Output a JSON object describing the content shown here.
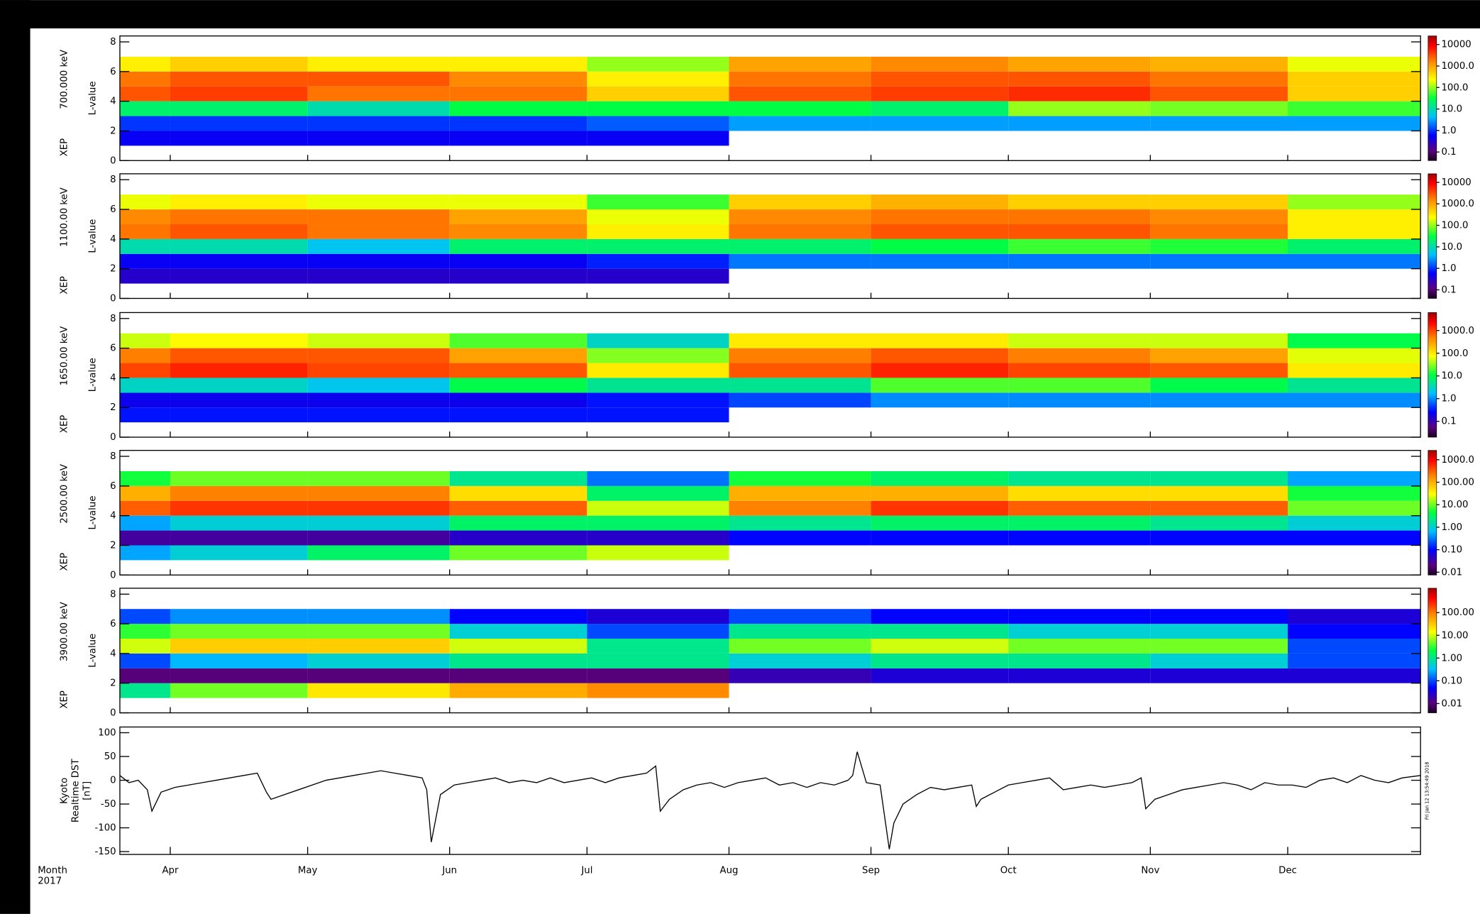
{
  "chart_data": [
    {
      "type": "heatmap",
      "title": "700.000 keV",
      "instrument": "XEP",
      "ylabel": "L-value",
      "colormap": "rainbow",
      "xlim": [
        80,
        364
      ],
      "ylim": [
        0,
        8.4
      ],
      "yticks": [
        0,
        2,
        4,
        6,
        8
      ],
      "xbins": [
        80,
        91,
        121,
        152,
        182,
        213,
        244,
        274,
        305,
        335,
        364
      ],
      "ybins": [
        1,
        2,
        3,
        4,
        5,
        6,
        7
      ],
      "z": [
        [
          0.5,
          0.5,
          0.5,
          0.5,
          0.5,
          null,
          null,
          null,
          null,
          null
        ],
        [
          1,
          1,
          1,
          1,
          1.5,
          3,
          3,
          3,
          3,
          3
        ],
        [
          20,
          20,
          10,
          30,
          30,
          30,
          20,
          100,
          80,
          50
        ],
        [
          3000,
          4000,
          2000,
          2000,
          500,
          3000,
          4000,
          5000,
          3000,
          500
        ],
        [
          2000,
          3000,
          3000,
          1500,
          300,
          2000,
          3000,
          3000,
          2000,
          500
        ],
        [
          300,
          500,
          300,
          300,
          100,
          1000,
          1500,
          1000,
          800,
          200
        ]
      ],
      "clim": [
        0.04,
        25000
      ],
      "cticks": [
        0.1,
        {
          "value": 1,
          "label": "1.0"
        },
        {
          "value": 10,
          "label": "10.0"
        },
        {
          "value": 100,
          "label": "100.0"
        },
        {
          "value": 1000,
          "label": "1000.0"
        },
        10000
      ]
    },
    {
      "type": "heatmap",
      "title": "1100.00 keV",
      "instrument": "XEP",
      "ylabel": "L-value",
      "colormap": "rainbow",
      "xlim": [
        80,
        364
      ],
      "ylim": [
        0,
        8.4
      ],
      "yticks": [
        0,
        2,
        4,
        6,
        8
      ],
      "xbins": [
        80,
        91,
        121,
        152,
        182,
        213,
        244,
        274,
        305,
        335,
        364
      ],
      "ybins": [
        1,
        2,
        3,
        4,
        5,
        6,
        7
      ],
      "z": [
        [
          0.3,
          0.3,
          0.3,
          0.3,
          0.3,
          null,
          null,
          null,
          null,
          null
        ],
        [
          0.5,
          0.5,
          0.5,
          0.5,
          0.8,
          2,
          2,
          2,
          2,
          2
        ],
        [
          10,
          10,
          5,
          20,
          20,
          20,
          30,
          50,
          40,
          20
        ],
        [
          2000,
          3000,
          2000,
          1500,
          300,
          2000,
          3000,
          3000,
          2000,
          300
        ],
        [
          1500,
          2000,
          2000,
          1000,
          200,
          1500,
          2000,
          2000,
          1500,
          300
        ],
        [
          200,
          300,
          200,
          200,
          50,
          500,
          800,
          500,
          500,
          100
        ]
      ],
      "clim": [
        0.04,
        25000
      ],
      "cticks": [
        0.1,
        {
          "value": 1,
          "label": "1.0"
        },
        {
          "value": 10,
          "label": "10.0"
        },
        {
          "value": 100,
          "label": "100.0"
        },
        {
          "value": 1000,
          "label": "1000.0"
        },
        10000
      ]
    },
    {
      "type": "heatmap",
      "title": "1650.00 keV",
      "instrument": "XEP",
      "ylabel": "L-value",
      "colormap": "rainbow",
      "xlim": [
        80,
        364
      ],
      "ylim": [
        0,
        8.4
      ],
      "yticks": [
        0,
        2,
        4,
        6,
        8
      ],
      "xbins": [
        80,
        91,
        121,
        152,
        182,
        213,
        244,
        274,
        305,
        335,
        364
      ],
      "ybins": [
        1,
        2,
        3,
        4,
        5,
        6,
        7
      ],
      "z": [
        [
          0.3,
          0.3,
          0.3,
          0.3,
          0.3,
          null,
          null,
          null,
          null,
          null
        ],
        [
          0.2,
          0.2,
          0.2,
          0.2,
          0.3,
          0.5,
          1,
          1,
          1,
          1
        ],
        [
          3,
          3,
          2,
          10,
          5,
          5,
          20,
          20,
          10,
          5
        ],
        [
          1000,
          1500,
          1000,
          800,
          100,
          800,
          1500,
          1000,
          800,
          100
        ],
        [
          500,
          800,
          800,
          300,
          30,
          500,
          800,
          500,
          300,
          60
        ],
        [
          50,
          80,
          50,
          20,
          3,
          100,
          100,
          50,
          50,
          10
        ]
      ],
      "clim": [
        0.02,
        6200
      ],
      "cticks": [
        0.1,
        {
          "value": 1,
          "label": "1.0"
        },
        {
          "value": 10,
          "label": "10.0"
        },
        {
          "value": 100,
          "label": "100.0"
        },
        {
          "value": 1000,
          "label": "1000.0"
        }
      ]
    },
    {
      "type": "heatmap",
      "title": "2500.00 keV",
      "instrument": "XEP",
      "ylabel": "L-value",
      "colormap": "rainbow",
      "xlim": [
        80,
        364
      ],
      "ylim": [
        0,
        8.4
      ],
      "yticks": [
        0,
        2,
        4,
        6,
        8
      ],
      "xbins": [
        80,
        91,
        121,
        152,
        182,
        213,
        244,
        274,
        305,
        335,
        364
      ],
      "ybins": [
        1,
        2,
        3,
        4,
        5,
        6,
        7
      ],
      "z": [
        [
          0.5,
          1,
          3,
          10,
          20,
          null,
          null,
          null,
          null,
          null
        ],
        [
          0.03,
          0.03,
          0.03,
          0.05,
          0.05,
          0.1,
          0.1,
          0.1,
          0.1,
          0.1
        ],
        [
          0.5,
          1,
          1,
          3,
          3,
          2,
          3,
          3,
          2,
          1
        ],
        [
          300,
          500,
          500,
          300,
          20,
          200,
          500,
          300,
          300,
          10
        ],
        [
          100,
          200,
          200,
          50,
          3,
          100,
          100,
          50,
          50,
          5
        ],
        [
          5,
          10,
          10,
          2,
          0.3,
          5,
          3,
          2,
          2,
          0.5
        ]
      ],
      "clim": [
        0.0075,
        2600
      ],
      "cticks": [
        0.01,
        {
          "value": 0.1,
          "label": "0.10"
        },
        {
          "value": 1,
          "label": "1.00"
        },
        {
          "value": 10,
          "label": "10.00"
        },
        {
          "value": 100,
          "label": "100.00"
        },
        {
          "value": 1000,
          "label": "1000.0"
        }
      ]
    },
    {
      "type": "heatmap",
      "title": "3900.00 keV",
      "instrument": "XEP",
      "ylabel": "L-value",
      "colormap": "rainbow",
      "xlim": [
        80,
        364
      ],
      "ylim": [
        0,
        8.4
      ],
      "yticks": [
        0,
        2,
        4,
        6,
        8
      ],
      "xbins": [
        80,
        91,
        121,
        152,
        182,
        213,
        244,
        274,
        305,
        335,
        364
      ],
      "ybins": [
        1,
        2,
        3,
        4,
        5,
        6,
        7
      ],
      "z": [
        [
          1,
          5,
          20,
          50,
          80,
          null,
          null,
          null,
          null,
          null
        ],
        [
          0.01,
          0.01,
          0.01,
          0.01,
          0.01,
          0.02,
          0.03,
          0.03,
          0.03,
          0.03
        ],
        [
          0.1,
          0.3,
          0.5,
          1,
          1,
          0.5,
          1,
          1,
          0.5,
          0.1
        ],
        [
          10,
          30,
          30,
          10,
          1,
          5,
          10,
          5,
          5,
          0.1
        ],
        [
          3,
          5,
          5,
          0.5,
          0.1,
          1,
          1,
          0.5,
          0.5,
          0.05
        ],
        [
          0.1,
          0.2,
          0.2,
          0.05,
          0.03,
          0.1,
          0.05,
          0.05,
          0.05,
          0.03
        ]
      ],
      "clim": [
        0.0039,
        1180
      ],
      "cticks": [
        0.01,
        {
          "value": 0.1,
          "label": "0.10"
        },
        {
          "value": 1,
          "label": "1.00"
        },
        {
          "value": 10,
          "label": "10.00"
        },
        {
          "value": 100,
          "label": "100.00"
        }
      ]
    },
    {
      "type": "line",
      "ylabel": [
        "Kyoto",
        "Realtime DST",
        "[nT]"
      ],
      "xlabel": [
        "Month",
        "2017"
      ],
      "annotation": "Fri Jan 12 13:54:49 2018",
      "xlim": [
        80,
        364
      ],
      "ylim": [
        -156,
        112
      ],
      "yticks": [
        -150,
        -100,
        -50,
        0,
        50,
        100
      ],
      "xticks": [
        {
          "value": 91,
          "label": "Apr"
        },
        {
          "value": 121,
          "label": "May"
        },
        {
          "value": 152,
          "label": "Jun"
        },
        {
          "value": 182,
          "label": "Jul"
        },
        {
          "value": 213,
          "label": "Aug"
        },
        {
          "value": 244,
          "label": "Sep"
        },
        {
          "value": 274,
          "label": "Oct"
        },
        {
          "value": 305,
          "label": "Nov"
        },
        {
          "value": 335,
          "label": "Dec"
        }
      ],
      "color": "#000000",
      "x": [
        80,
        82,
        84,
        86,
        87,
        89,
        92,
        95,
        98,
        101,
        104,
        107,
        110,
        112,
        113,
        116,
        119,
        122,
        125,
        128,
        131,
        134,
        137,
        140,
        143,
        146,
        147,
        148,
        150,
        153,
        156,
        159,
        162,
        165,
        168,
        171,
        174,
        177,
        180,
        183,
        186,
        189,
        192,
        195,
        197,
        198,
        200,
        203,
        206,
        209,
        212,
        215,
        218,
        221,
        224,
        227,
        230,
        233,
        236,
        239,
        240,
        241,
        243,
        246,
        248,
        249,
        251,
        254,
        257,
        260,
        263,
        266,
        267,
        268,
        271,
        274,
        277,
        280,
        283,
        286,
        289,
        292,
        295,
        298,
        301,
        303,
        304,
        306,
        309,
        312,
        315,
        318,
        321,
        324,
        327,
        330,
        333,
        336,
        339,
        342,
        345,
        348,
        351,
        354,
        357,
        360,
        364
      ],
      "values": [
        10,
        -5,
        0,
        -20,
        -65,
        -25,
        -15,
        -10,
        -5,
        0,
        5,
        10,
        15,
        -25,
        -40,
        -30,
        -20,
        -10,
        0,
        5,
        10,
        15,
        20,
        15,
        10,
        5,
        -20,
        -130,
        -30,
        -10,
        -5,
        0,
        5,
        -5,
        0,
        -5,
        5,
        -5,
        0,
        5,
        -5,
        5,
        10,
        15,
        30,
        -65,
        -40,
        -20,
        -10,
        -5,
        -15,
        -5,
        0,
        5,
        -10,
        -5,
        -15,
        -5,
        -10,
        0,
        10,
        60,
        -5,
        -10,
        -145,
        -90,
        -50,
        -30,
        -15,
        -20,
        -15,
        -10,
        -55,
        -40,
        -25,
        -10,
        -5,
        0,
        5,
        -20,
        -15,
        -10,
        -15,
        -10,
        -5,
        5,
        -60,
        -40,
        -30,
        -20,
        -15,
        -10,
        -5,
        -10,
        -20,
        -5,
        -10,
        -10,
        -15,
        0,
        5,
        -5,
        10,
        0,
        -5,
        5,
        10
      ]
    }
  ]
}
